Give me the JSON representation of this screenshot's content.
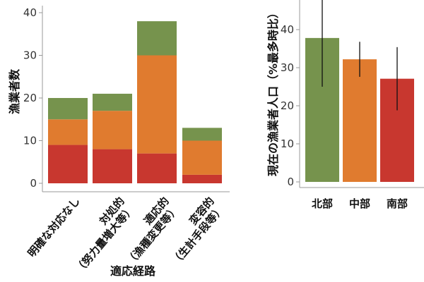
{
  "colors": {
    "green": "#76934d",
    "orange": "#e07b2f",
    "red": "#c8372f"
  },
  "chart_data": [
    {
      "type": "bar",
      "stacked": true,
      "ylabel": "漁業者数",
      "xlabel": "適応経路",
      "categories": [
        [
          "明確な対応なし"
        ],
        [
          "対処的",
          "（努力量増大等）"
        ],
        [
          "適応的",
          "（漁種変更等）"
        ],
        [
          "変容的",
          "（生計手段等）"
        ]
      ],
      "series": [
        {
          "color": "red",
          "values": [
            9,
            8,
            7,
            2
          ]
        },
        {
          "color": "orange",
          "values": [
            6,
            9,
            23,
            8
          ]
        },
        {
          "color": "green",
          "values": [
            5,
            4,
            8,
            3
          ]
        }
      ],
      "yticks": [
        0,
        10,
        20,
        30,
        40
      ],
      "ylim": [
        0,
        42
      ],
      "grid": false
    },
    {
      "type": "bar",
      "error_bars": true,
      "ylabel": "現在の漁業者人口（%最多時比）",
      "categories": [
        "北部",
        "中部",
        "南部"
      ],
      "values": [
        37.8,
        32.2,
        27.1
      ],
      "errors_low": [
        25.0,
        27.6,
        18.8
      ],
      "errors_high": [
        48.5,
        36.8,
        35.4
      ],
      "colors": [
        "green",
        "orange",
        "red"
      ],
      "yticks": [
        0,
        10,
        20,
        30,
        40
      ],
      "ylim": [
        0,
        48
      ],
      "grid": false
    }
  ]
}
